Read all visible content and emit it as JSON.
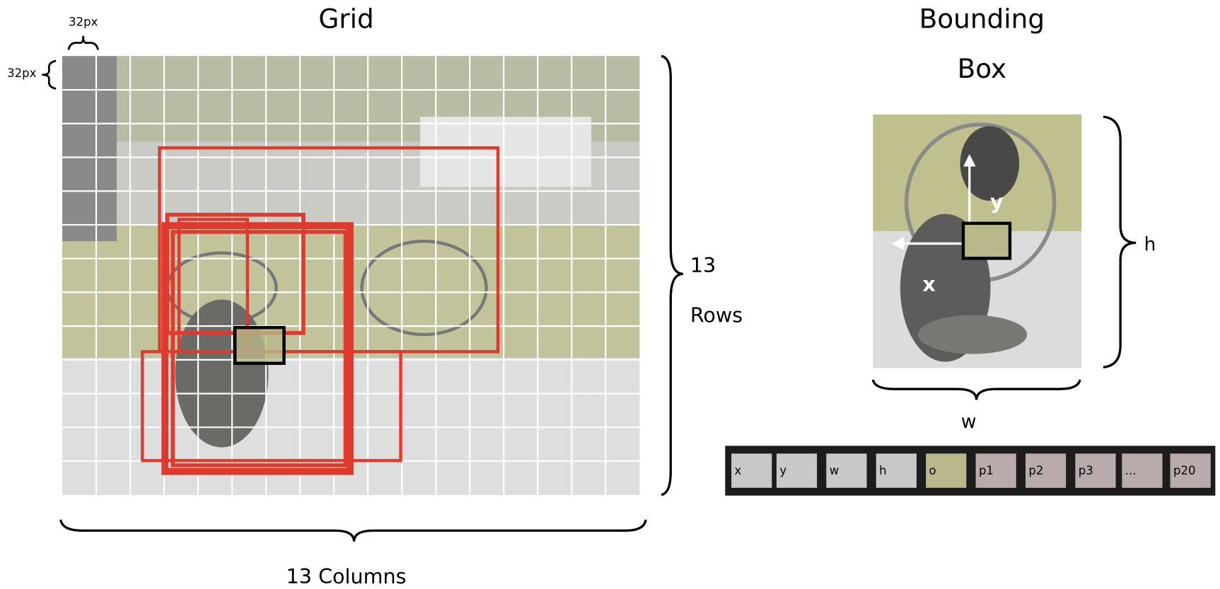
{
  "grid": {
    "title": "Grid",
    "cell_width_label": "32px",
    "cell_height_label": "32px",
    "rows_count": "13",
    "rows_label": "Rows",
    "columns_label": "13 Columns"
  },
  "bounding_box": {
    "title_line1": "Bounding",
    "title_line2": "Box",
    "y_label": "y",
    "x_label": "x",
    "h_label": "h",
    "w_label": "w"
  },
  "vector": [
    "x",
    "y",
    "w",
    "h",
    "o",
    "p1",
    "p2",
    "p3",
    "...",
    "p20"
  ]
}
